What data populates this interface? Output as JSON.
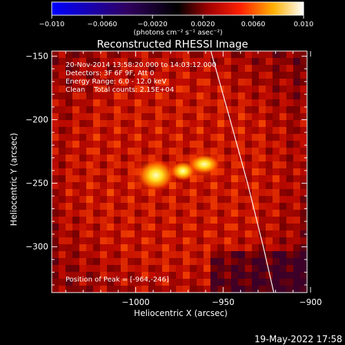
{
  "chart_data": {
    "type": "heatmap",
    "title": "Reconstructed RHESSI Image",
    "colorbar": {
      "min": -0.01,
      "max": 0.01,
      "ticks": [
        "−0.010",
        "−0.0060",
        "−0.0020",
        "0.0020",
        "0.0060",
        "0.010"
      ],
      "label": "(photons cm⁻² s⁻¹ asec⁻²)",
      "colormap": [
        "#0000ff",
        "#000000",
        "#ff0000",
        "#ffff00",
        "#ffffff"
      ]
    },
    "xlabel": "Heliocentric X (arcsec)",
    "ylabel": "Heliocentric Y (arcsec)",
    "xlim": [
      -1048,
      -902
    ],
    "ylim": [
      -336,
      -146
    ],
    "xticks": [
      {
        "value": -1000,
        "label": "−1000"
      },
      {
        "value": -950,
        "label": "−950"
      },
      {
        "value": -900,
        "label": "−900"
      }
    ],
    "yticks": [
      {
        "value": -150,
        "label": "−150"
      },
      {
        "value": -200,
        "label": "−200"
      },
      {
        "value": -250,
        "label": "−250"
      },
      {
        "value": -300,
        "label": "−300"
      }
    ],
    "annotations": [
      "20-Nov-2014 13:58:20.000 to 14:03:12.000",
      "Detectors: 3F 6F 9F, Att 0",
      "Energy Range: 6.0 - 12.0 keV",
      "Clean    Total counts: 2.15E+04"
    ],
    "peak_label": "Position of Peak = [-964,-246]",
    "peak": [
      -964,
      -246
    ],
    "limb_curve": [
      [
        -957,
        -146
      ],
      [
        -946,
        -200
      ],
      [
        -936,
        -250
      ],
      [
        -927,
        -300
      ],
      [
        -921,
        -336
      ]
    ]
  },
  "footer_timestamp": "19-May-2022 17:58"
}
